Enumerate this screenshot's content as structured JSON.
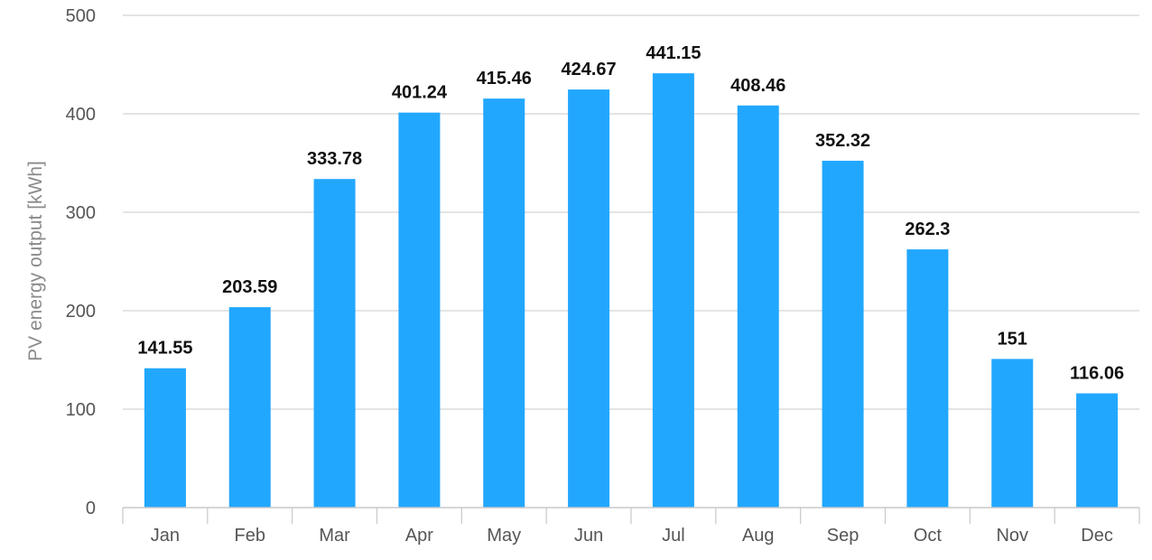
{
  "chart_data": {
    "type": "bar",
    "title": "",
    "xlabel": "",
    "ylabel": "PV energy output [kWh]",
    "ylim": [
      0,
      500
    ],
    "yticks": [
      0,
      100,
      200,
      300,
      400,
      500
    ],
    "grid": true,
    "legend": "none",
    "categories": [
      "Jan",
      "Feb",
      "Mar",
      "Apr",
      "May",
      "Jun",
      "Jul",
      "Aug",
      "Sep",
      "Oct",
      "Nov",
      "Dec"
    ],
    "values": [
      141.55,
      203.59,
      333.78,
      401.24,
      415.46,
      424.67,
      441.15,
      408.46,
      352.32,
      262.3,
      151,
      116.06
    ],
    "data_labels": [
      "141.55",
      "203.59",
      "333.78",
      "401.24",
      "415.46",
      "424.67",
      "441.15",
      "408.46",
      "352.32",
      "262.3",
      "151",
      "116.06"
    ],
    "colors": {
      "bar": "#22a7ff",
      "grid": "#d3d3d3",
      "axis": "#c8c8c8"
    }
  }
}
